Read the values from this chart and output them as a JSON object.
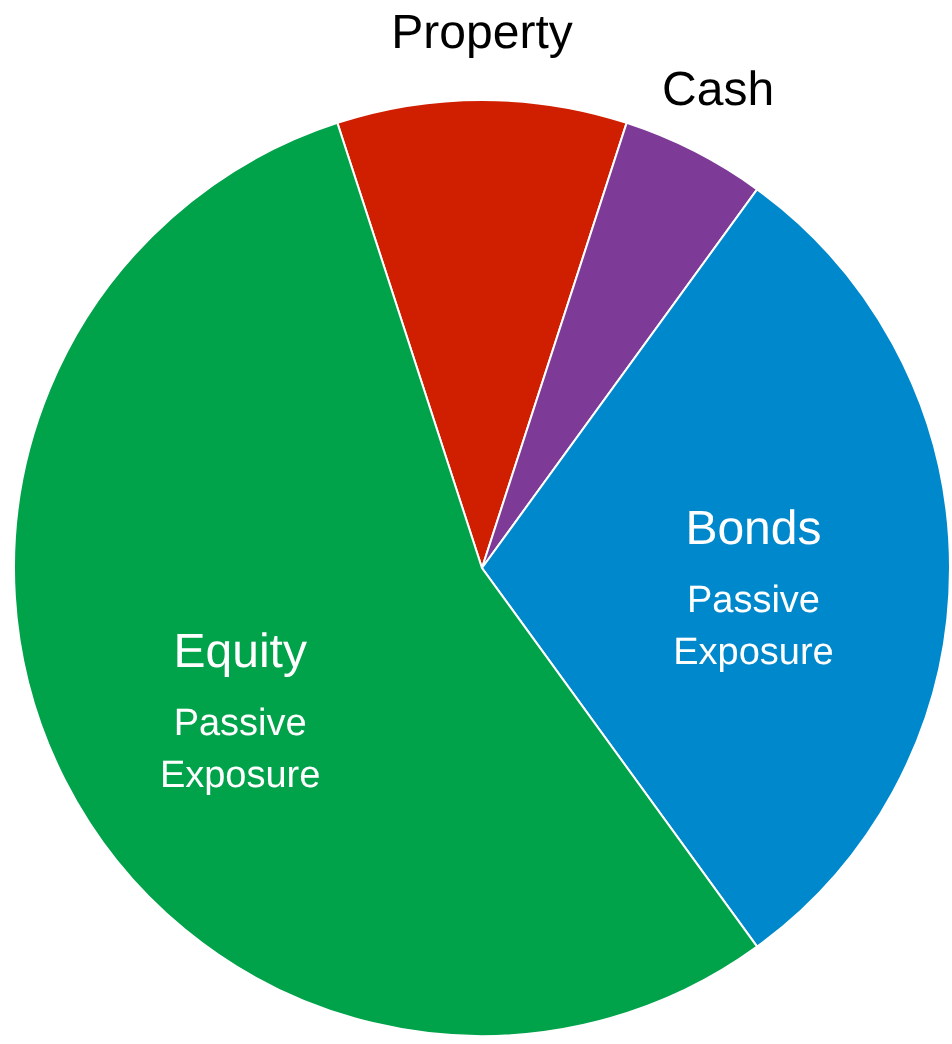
{
  "chart_data": {
    "type": "pie",
    "categories": [
      "Property",
      "Cash",
      "Bonds",
      "Equity"
    ],
    "values": [
      10,
      5,
      30,
      55
    ],
    "colors": [
      "#d01f00",
      "#7d3a96",
      "#0088cc",
      "#00a24a"
    ],
    "value_labels": [
      null,
      null,
      "Passive Exposure",
      "Passive Exposure"
    ]
  }
}
